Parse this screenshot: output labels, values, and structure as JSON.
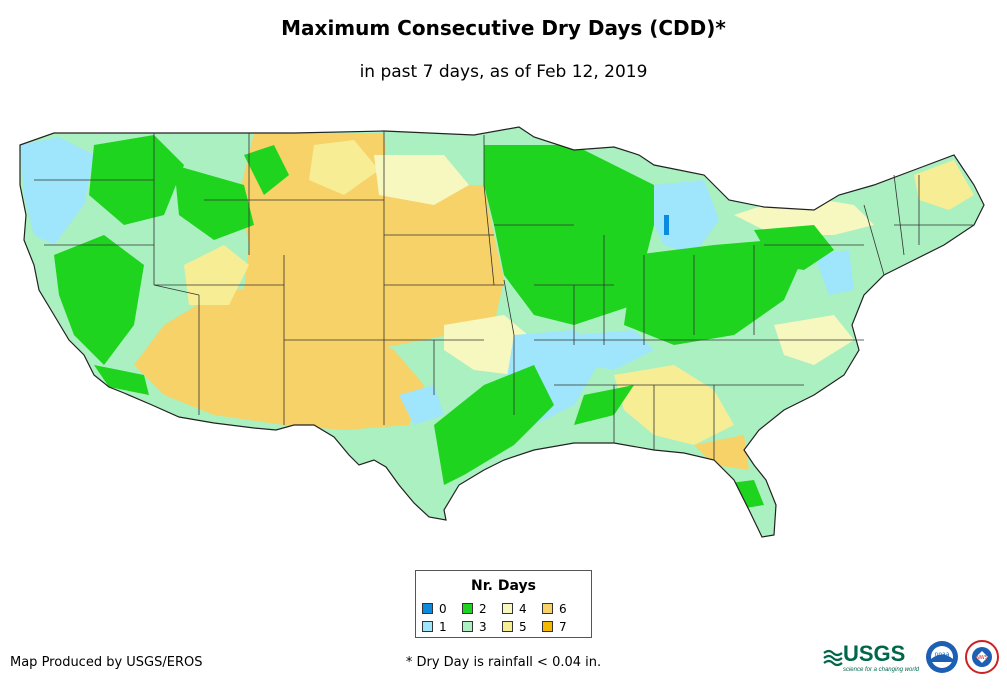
{
  "title": "Maximum Consecutive Dry Days (CDD)*",
  "subtitle": "in past 7 days, as of Feb 12, 2019",
  "legend": {
    "title": "Nr. Days",
    "items": [
      {
        "label": "0",
        "color": "#0a8be0"
      },
      {
        "label": "1",
        "color": "#9fe5fb"
      },
      {
        "label": "2",
        "color": "#1ed41e"
      },
      {
        "label": "3",
        "color": "#aaf0c0"
      },
      {
        "label": "4",
        "color": "#f7f7c0"
      },
      {
        "label": "5",
        "color": "#f7ed95"
      },
      {
        "label": "6",
        "color": "#f7d268"
      },
      {
        "label": "7",
        "color": "#f3b800"
      }
    ]
  },
  "credit": "Map Produced by USGS/EROS",
  "footnote": "* Dry Day is rainfall < 0.04 in.",
  "logos": {
    "usgs": "USGS",
    "usgs_tagline": "science for a changing world",
    "noaa": "noaa",
    "nws": "NWS"
  }
}
